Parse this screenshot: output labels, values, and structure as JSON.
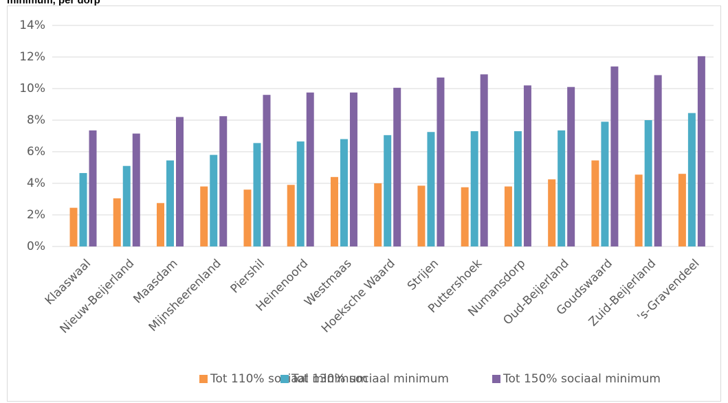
{
  "chart_data": {
    "type": "bar",
    "title": "minimum, per dorp",
    "categories": [
      "Klaaswaal",
      "Nieuw-Beijerland",
      "Maasdam",
      "Mijnsheerenland",
      "Piershil",
      "Heinenoord",
      "Westmaas",
      "Hoeksche Waard",
      "Strijen",
      "Puttershoek",
      "Numansdorp",
      "Oud-Beijerland",
      "Goudswaard",
      "Zuid-Beijerland",
      "'s-Gravendeel"
    ],
    "series": [
      {
        "name": "Tot 110% sociaal minimum",
        "color": "#f79646",
        "values": [
          2.45,
          3.05,
          2.75,
          3.8,
          3.6,
          3.9,
          4.4,
          4.0,
          3.85,
          3.75,
          3.8,
          4.25,
          5.45,
          4.55,
          4.6
        ]
      },
      {
        "name": "Tot 130% sociaal minimum",
        "color": "#4bacc6",
        "values": [
          4.65,
          5.1,
          5.45,
          5.8,
          6.55,
          6.65,
          6.8,
          7.05,
          7.25,
          7.3,
          7.3,
          7.35,
          7.9,
          8.0,
          8.45
        ]
      },
      {
        "name": "Tot 150% sociaal minimum",
        "color": "#8064a2",
        "values": [
          7.35,
          7.15,
          8.2,
          8.25,
          9.6,
          9.75,
          9.75,
          10.05,
          10.7,
          10.9,
          10.2,
          10.1,
          11.4,
          10.85,
          12.05
        ]
      }
    ],
    "ylim": [
      0,
      14
    ],
    "yticks": [
      {
        "value": 0,
        "label": "0%"
      },
      {
        "value": 2,
        "label": "2%"
      },
      {
        "value": 4,
        "label": "4%"
      },
      {
        "value": 6,
        "label": "6%"
      },
      {
        "value": 8,
        "label": "8%"
      },
      {
        "value": 10,
        "label": "10%"
      },
      {
        "value": 12,
        "label": "12%"
      },
      {
        "value": 14,
        "label": "14%"
      }
    ],
    "grid": true,
    "legend": "bottom"
  }
}
